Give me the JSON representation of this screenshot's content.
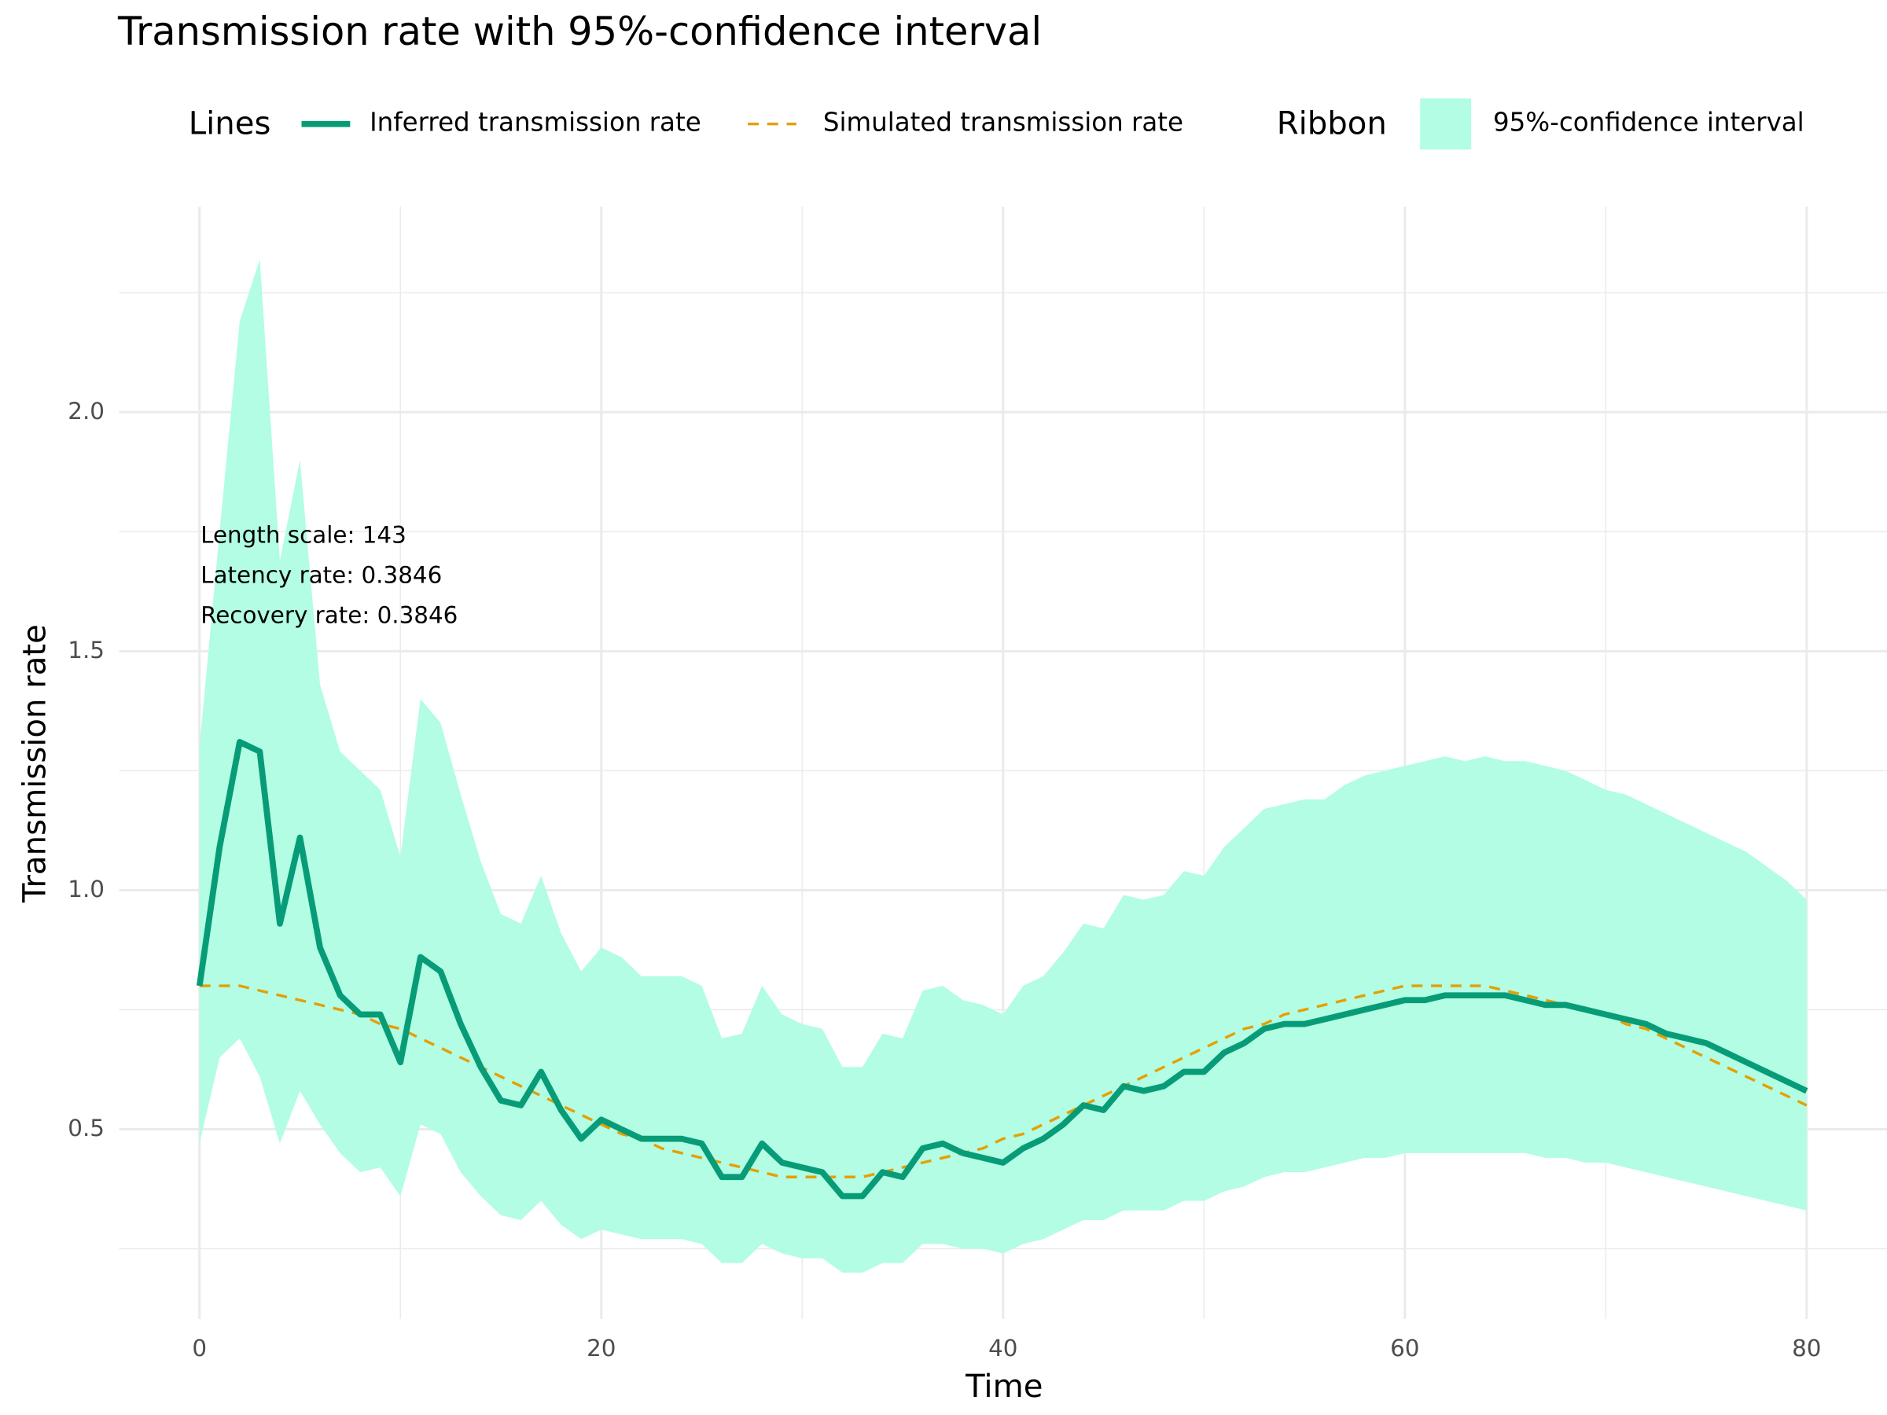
{
  "chart_data": {
    "type": "line",
    "title": "Transmission rate with 95%-confidence interval",
    "x_label": "Time",
    "y_label": "Transmission rate",
    "line_legend_title": "Lines",
    "ribbon_legend_title": "Ribbon",
    "annotations": [
      "Length scale: 143",
      "Latency rate: 0.3846",
      "Recovery rate: 0.3846"
    ],
    "x": [
      0,
      1,
      2,
      3,
      4,
      5,
      6,
      7,
      8,
      9,
      10,
      11,
      12,
      13,
      14,
      15,
      16,
      17,
      18,
      19,
      20,
      21,
      22,
      23,
      24,
      25,
      26,
      27,
      28,
      29,
      30,
      31,
      32,
      33,
      34,
      35,
      36,
      37,
      38,
      39,
      40,
      41,
      42,
      43,
      44,
      45,
      46,
      47,
      48,
      49,
      50,
      51,
      52,
      53,
      54,
      55,
      56,
      57,
      58,
      59,
      60,
      61,
      62,
      63,
      64,
      65,
      66,
      67,
      68,
      69,
      70,
      71,
      72,
      73,
      74,
      75,
      76,
      77,
      78,
      79,
      80
    ],
    "ribbon": {
      "name": "95%-confidence interval",
      "color": "#b2fde4",
      "lower": [
        0.47,
        0.65,
        0.69,
        0.61,
        0.47,
        0.58,
        0.51,
        0.45,
        0.41,
        0.42,
        0.36,
        0.51,
        0.49,
        0.41,
        0.36,
        0.32,
        0.31,
        0.35,
        0.3,
        0.27,
        0.29,
        0.28,
        0.27,
        0.27,
        0.27,
        0.26,
        0.22,
        0.22,
        0.26,
        0.24,
        0.23,
        0.23,
        0.2,
        0.2,
        0.22,
        0.22,
        0.26,
        0.26,
        0.25,
        0.25,
        0.24,
        0.26,
        0.27,
        0.29,
        0.31,
        0.31,
        0.33,
        0.33,
        0.33,
        0.35,
        0.35,
        0.37,
        0.38,
        0.4,
        0.41,
        0.41,
        0.42,
        0.43,
        0.44,
        0.44,
        0.45,
        0.45,
        0.45,
        0.45,
        0.45,
        0.45,
        0.45,
        0.44,
        0.44,
        0.43,
        0.43,
        0.42,
        0.41,
        0.4,
        0.39,
        0.38,
        0.37,
        0.36,
        0.35,
        0.34,
        0.33
      ],
      "upper": [
        1.3,
        1.75,
        2.19,
        2.32,
        1.69,
        1.9,
        1.43,
        1.29,
        1.25,
        1.21,
        1.07,
        1.4,
        1.35,
        1.2,
        1.06,
        0.95,
        0.93,
        1.03,
        0.91,
        0.83,
        0.88,
        0.86,
        0.82,
        0.82,
        0.82,
        0.8,
        0.69,
        0.7,
        0.8,
        0.74,
        0.72,
        0.71,
        0.63,
        0.63,
        0.7,
        0.69,
        0.79,
        0.8,
        0.77,
        0.76,
        0.74,
        0.8,
        0.82,
        0.87,
        0.93,
        0.92,
        0.99,
        0.98,
        0.99,
        1.04,
        1.03,
        1.09,
        1.13,
        1.17,
        1.18,
        1.19,
        1.19,
        1.22,
        1.24,
        1.25,
        1.26,
        1.27,
        1.28,
        1.27,
        1.28,
        1.27,
        1.27,
        1.26,
        1.25,
        1.23,
        1.21,
        1.2,
        1.18,
        1.16,
        1.14,
        1.12,
        1.1,
        1.08,
        1.05,
        1.02,
        0.98
      ]
    },
    "series": [
      {
        "name": "Inferred transmission rate",
        "color": "#079c77",
        "style": "solid",
        "values": [
          0.8,
          1.09,
          1.31,
          1.29,
          0.93,
          1.11,
          0.88,
          0.78,
          0.74,
          0.74,
          0.64,
          0.86,
          0.83,
          0.72,
          0.63,
          0.56,
          0.55,
          0.62,
          0.54,
          0.48,
          0.52,
          0.5,
          0.48,
          0.48,
          0.48,
          0.47,
          0.4,
          0.4,
          0.47,
          0.43,
          0.42,
          0.41,
          0.36,
          0.36,
          0.41,
          0.4,
          0.46,
          0.47,
          0.45,
          0.44,
          0.43,
          0.46,
          0.48,
          0.51,
          0.55,
          0.54,
          0.59,
          0.58,
          0.59,
          0.62,
          0.62,
          0.66,
          0.68,
          0.71,
          0.72,
          0.72,
          0.73,
          0.74,
          0.75,
          0.76,
          0.77,
          0.77,
          0.78,
          0.78,
          0.78,
          0.78,
          0.77,
          0.76,
          0.76,
          0.75,
          0.74,
          0.73,
          0.72,
          0.7,
          0.69,
          0.68,
          0.66,
          0.64,
          0.62,
          0.6,
          0.58
        ]
      },
      {
        "name": "Simulated transmission rate",
        "color": "#e69f00",
        "style": "dashed",
        "values": [
          0.8,
          0.8,
          0.8,
          0.79,
          0.78,
          0.77,
          0.76,
          0.75,
          0.74,
          0.72,
          0.71,
          0.69,
          0.67,
          0.65,
          0.63,
          0.61,
          0.59,
          0.57,
          0.55,
          0.53,
          0.51,
          0.49,
          0.48,
          0.46,
          0.45,
          0.44,
          0.43,
          0.42,
          0.41,
          0.4,
          0.4,
          0.4,
          0.4,
          0.4,
          0.41,
          0.42,
          0.43,
          0.44,
          0.45,
          0.46,
          0.48,
          0.49,
          0.51,
          0.53,
          0.55,
          0.57,
          0.59,
          0.61,
          0.63,
          0.65,
          0.67,
          0.69,
          0.71,
          0.72,
          0.74,
          0.75,
          0.76,
          0.77,
          0.78,
          0.79,
          0.8,
          0.8,
          0.8,
          0.8,
          0.8,
          0.79,
          0.78,
          0.77,
          0.76,
          0.75,
          0.74,
          0.72,
          0.71,
          0.69,
          0.67,
          0.65,
          0.63,
          0.61,
          0.59,
          0.57,
          0.55
        ]
      }
    ],
    "xlim": [
      -4,
      84
    ],
    "ylim": [
      0.103,
      2.43
    ],
    "xticks": [
      0,
      20,
      40,
      60,
      80
    ],
    "minor_xticks": [
      10,
      30,
      50,
      70
    ],
    "yticks": [
      0.5,
      {
        "value": 1,
        "label": "1.0"
      },
      1.5,
      {
        "value": 2,
        "label": "2.0"
      }
    ],
    "minor_yticks": [
      0.25,
      0.75,
      1.25,
      1.75,
      2.25
    ],
    "grid": true
  }
}
